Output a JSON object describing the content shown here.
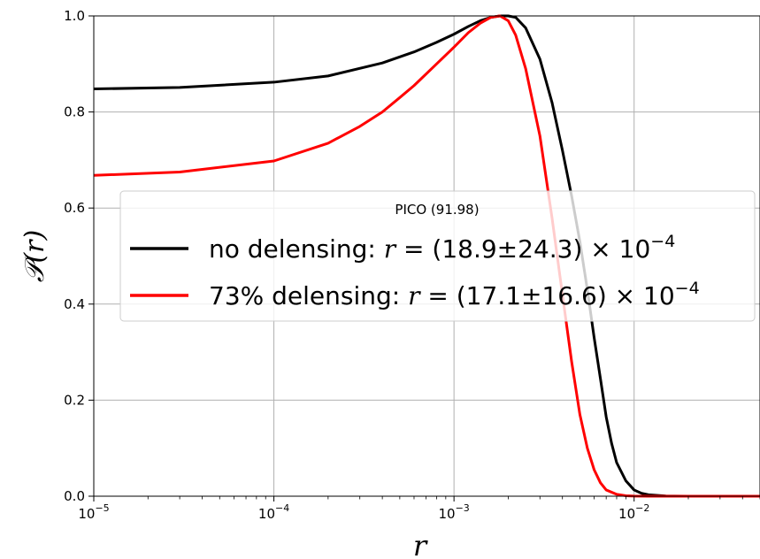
{
  "chart_data": {
    "type": "line",
    "title": "",
    "xlabel": "r",
    "ylabel": "𝒫(r)",
    "xscale": "log",
    "xlim": [
      1e-05,
      0.05
    ],
    "ylim": [
      0.0,
      1.0
    ],
    "grid": true,
    "x_tick_labels": [
      {
        "value": 1e-05,
        "base": "10",
        "exp": "−5"
      },
      {
        "value": 0.0001,
        "base": "10",
        "exp": "−4"
      },
      {
        "value": 0.001,
        "base": "10",
        "exp": "−3"
      },
      {
        "value": 0.01,
        "base": "10",
        "exp": "−2"
      }
    ],
    "y_ticks": [
      0.0,
      0.2,
      0.4,
      0.6,
      0.8,
      1.0
    ],
    "y_tick_labels": [
      "0.0",
      "0.2",
      "0.4",
      "0.6",
      "0.8",
      "1.0"
    ],
    "legend": {
      "title": "PICO (91.98)",
      "placement": "center-right"
    },
    "series": [
      {
        "name": "no delensing: r = (18.9±24.3) × 10⁻⁴",
        "label_prefix": "no delensing: ",
        "label_var": "r",
        "label_mid": " = (18.9±24.3) × 10",
        "label_exp": "−4",
        "color": "#000000",
        "x": [
          1e-05,
          3e-05,
          0.0001,
          0.0002,
          0.0004,
          0.0006,
          0.0008,
          0.001,
          0.0012,
          0.0014,
          0.0016,
          0.0018,
          0.002,
          0.0022,
          0.0025,
          0.003,
          0.0035,
          0.004,
          0.0045,
          0.005,
          0.0055,
          0.006,
          0.0065,
          0.007,
          0.0075,
          0.008,
          0.009,
          0.01,
          0.011,
          0.012,
          0.015,
          0.02,
          0.05
        ],
        "y": [
          0.848,
          0.851,
          0.862,
          0.875,
          0.902,
          0.925,
          0.945,
          0.962,
          0.978,
          0.99,
          0.997,
          1.0,
          1.0,
          0.997,
          0.975,
          0.91,
          0.82,
          0.72,
          0.625,
          0.53,
          0.43,
          0.33,
          0.245,
          0.165,
          0.11,
          0.07,
          0.032,
          0.013,
          0.006,
          0.003,
          0.0005,
          0.0,
          0.0
        ]
      },
      {
        "name": "73% delensing: r = (17.1±16.6) × 10⁻⁴",
        "label_prefix": "73% delensing: ",
        "label_var": "r",
        "label_mid": " = (17.1±16.6) × 10",
        "label_exp": "−4",
        "color": "#ff0000",
        "x": [
          1e-05,
          3e-05,
          0.0001,
          0.0002,
          0.0003,
          0.0004,
          0.0005,
          0.0006,
          0.0008,
          0.001,
          0.0012,
          0.0014,
          0.0016,
          0.0018,
          0.002,
          0.0022,
          0.0025,
          0.003,
          0.0035,
          0.004,
          0.0045,
          0.005,
          0.0055,
          0.006,
          0.0065,
          0.007,
          0.008,
          0.009,
          0.01,
          0.012,
          0.015,
          0.05
        ],
        "y": [
          0.668,
          0.675,
          0.698,
          0.735,
          0.77,
          0.8,
          0.83,
          0.855,
          0.9,
          0.935,
          0.965,
          0.985,
          0.997,
          1.0,
          0.99,
          0.96,
          0.89,
          0.75,
          0.58,
          0.42,
          0.28,
          0.17,
          0.1,
          0.055,
          0.028,
          0.013,
          0.004,
          0.001,
          0.0003,
          0.0,
          0.0,
          0.0
        ]
      }
    ]
  }
}
